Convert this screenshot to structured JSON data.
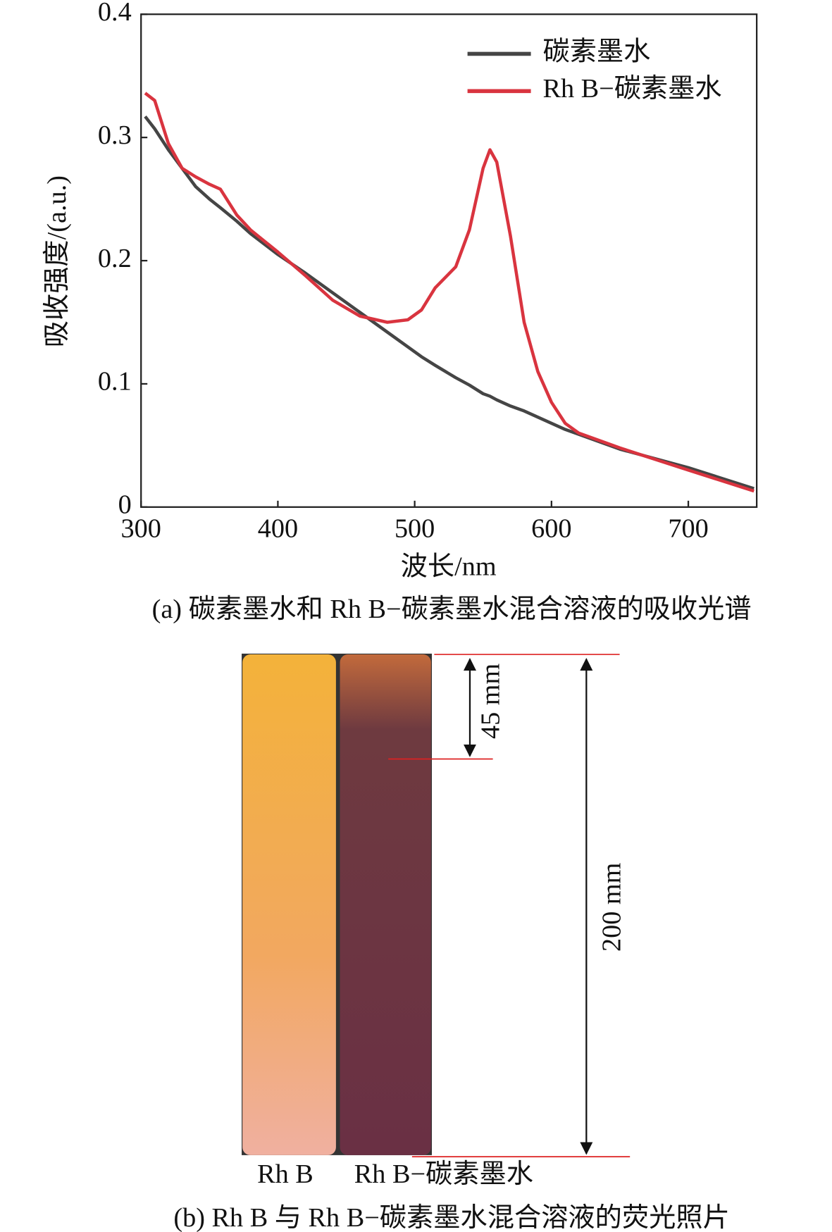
{
  "chart_data": {
    "type": "line",
    "y_label": "吸收强度/(a.u.)",
    "x_label": "波长/nm",
    "x": [
      303,
      310,
      320,
      330,
      340,
      350,
      358,
      370,
      380,
      400,
      420,
      440,
      460,
      480,
      495,
      505,
      515,
      530,
      540,
      550,
      555,
      560,
      570,
      580,
      590,
      600,
      610,
      620,
      650,
      700,
      748
    ],
    "series": [
      {
        "name": "碳素墨水",
        "color": "#454545",
        "values": [
          0.317,
          0.307,
          0.29,
          0.275,
          0.26,
          0.25,
          0.243,
          0.232,
          0.222,
          0.205,
          0.19,
          0.174,
          0.158,
          0.142,
          0.13,
          0.122,
          0.115,
          0.105,
          0.099,
          0.092,
          0.09,
          0.087,
          0.082,
          0.078,
          0.073,
          0.068,
          0.063,
          0.059,
          0.047,
          0.032,
          0.015
        ]
      },
      {
        "name": "Rh B−碳素墨水",
        "color": "#d9343f",
        "values": [
          0.336,
          0.33,
          0.295,
          0.275,
          0.268,
          0.262,
          0.258,
          0.237,
          0.225,
          0.207,
          0.188,
          0.168,
          0.155,
          0.15,
          0.152,
          0.16,
          0.178,
          0.195,
          0.225,
          0.275,
          0.29,
          0.28,
          0.22,
          0.15,
          0.11,
          0.085,
          0.068,
          0.06,
          0.048,
          0.03,
          0.013
        ]
      }
    ],
    "xlim": [
      300,
      750
    ],
    "xticks": [
      300,
      400,
      500,
      600,
      700
    ],
    "ylim": [
      0,
      0.4
    ],
    "yticks": [
      0,
      0.1,
      0.2,
      0.3,
      0.4
    ],
    "grid": false,
    "legend": "top-right",
    "caption": "(a) 碳素墨水和 Rh B−碳素墨水混合溶液的吸收光谱"
  },
  "photo": {
    "labels": [
      "Rh B",
      "Rh B−碳素墨水"
    ],
    "dimension_short": "45 mm",
    "dimension_long": "200 mm",
    "caption": "(b) Rh B 与 Rh B−碳素墨水混合溶液的荧光照片"
  }
}
